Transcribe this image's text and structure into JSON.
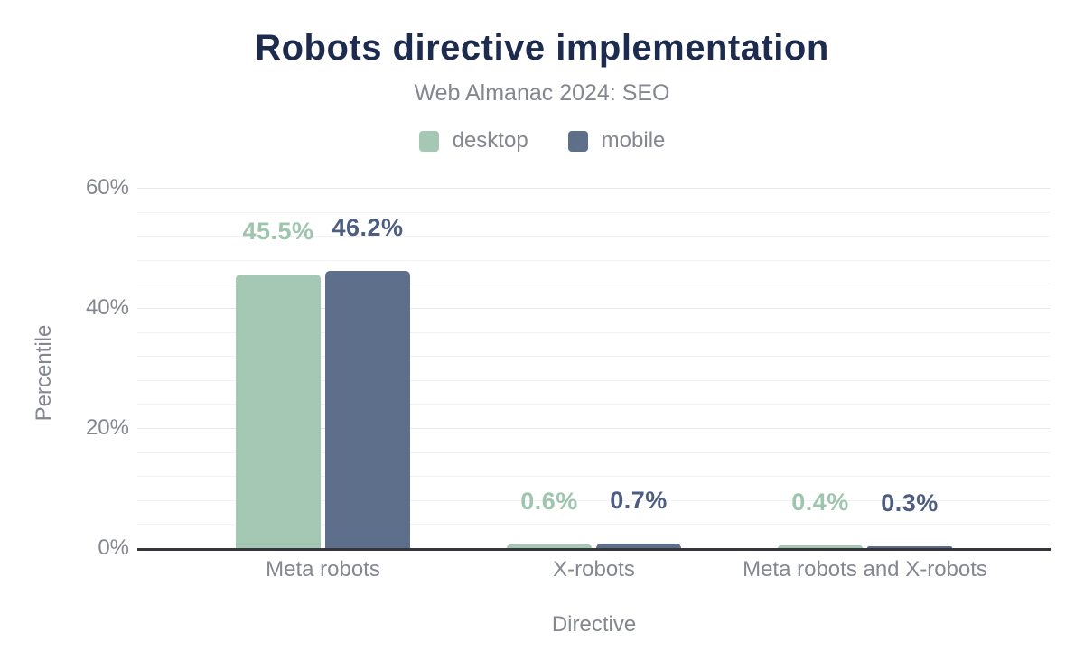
{
  "header": {
    "title": "Robots directive implementation",
    "subtitle": "Web Almanac 2024: SEO"
  },
  "chart_data": {
    "type": "bar",
    "title": "Robots directive implementation",
    "subtitle": "Web Almanac 2024: SEO",
    "xlabel": "Directive",
    "ylabel": "Percentile",
    "categories": [
      "Meta robots",
      "X-robots",
      "Meta robots and X-robots"
    ],
    "series": [
      {
        "name": "desktop",
        "color": "#a5c8b5",
        "label_color": "#9ec6ae",
        "values": [
          45.5,
          0.6,
          0.4
        ]
      },
      {
        "name": "mobile",
        "color": "#5e6f8c",
        "label_color": "#4d5e82",
        "values": [
          46.2,
          0.7,
          0.3
        ]
      }
    ],
    "value_labels": [
      [
        "45.5%",
        "46.2%"
      ],
      [
        "0.6%",
        "0.7%"
      ],
      [
        "0.4%",
        "0.3%"
      ]
    ],
    "yticks": [
      {
        "label": "0%",
        "value": 0
      },
      {
        "label": "20%",
        "value": 20
      },
      {
        "label": "40%",
        "value": 40
      },
      {
        "label": "60%",
        "value": 60
      }
    ],
    "ylim": [
      0,
      60
    ],
    "grid_minor_step": 4,
    "grid_major_step": 20,
    "grid": "horizontal",
    "legend_position": "top"
  },
  "colors": {
    "title_text": "#1c2b4e",
    "muted_text": "#85878f",
    "axis_line": "#35363c",
    "grid_minor": "#f2f2f5",
    "grid_major": "#e8e8ec",
    "desktop": "#a5c8b5",
    "mobile": "#5e6f8c",
    "background": "#ffffff"
  }
}
